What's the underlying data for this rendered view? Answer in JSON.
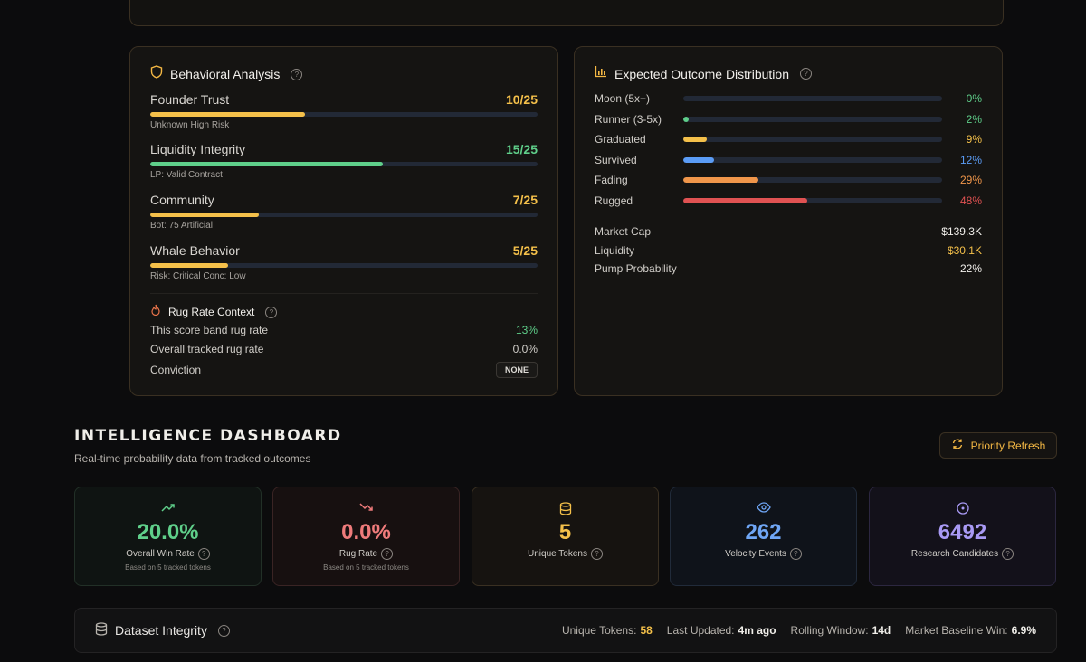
{
  "behavioral": {
    "title": "Behavioral Analysis",
    "metrics": [
      {
        "name": "Founder Trust",
        "score": "10/25",
        "fraction": 0.4,
        "sub": "Unknown High Risk",
        "color": "#f4c04a"
      },
      {
        "name": "Liquidity Integrity",
        "score": "15/25",
        "fraction": 0.6,
        "sub": "LP: Valid Contract",
        "color": "#5fcf8a"
      },
      {
        "name": "Community",
        "score": "7/25",
        "fraction": 0.28,
        "sub": "Bot: 75 Artificial",
        "color": "#f4c04a"
      },
      {
        "name": "Whale Behavior",
        "score": "5/25",
        "fraction": 0.2,
        "sub": "Risk: Critical Conc: Low",
        "color": "#f4c04a"
      }
    ],
    "rug_context": {
      "title": "Rug Rate Context",
      "band_label": "This score band rug rate",
      "band_value": "13%",
      "overall_label": "Overall tracked rug rate",
      "overall_value": "0.0%",
      "conviction_label": "Conviction",
      "conviction_value": "NONE"
    }
  },
  "distribution": {
    "title": "Expected Outcome Distribution",
    "rows": [
      {
        "label": "Moon (5x+)",
        "pct": "0%",
        "fraction": 0.0,
        "color": "#5fcf8a"
      },
      {
        "label": "Runner (3-5x)",
        "pct": "2%",
        "fraction": 0.02,
        "color": "#5fcf8a"
      },
      {
        "label": "Graduated",
        "pct": "9%",
        "fraction": 0.09,
        "color": "#f4c04a"
      },
      {
        "label": "Survived",
        "pct": "12%",
        "fraction": 0.12,
        "color": "#5b9cf5"
      },
      {
        "label": "Fading",
        "pct": "29%",
        "fraction": 0.29,
        "color": "#f0964a"
      },
      {
        "label": "Rugged",
        "pct": "48%",
        "fraction": 0.48,
        "color": "#e05252"
      }
    ],
    "market_cap_label": "Market Cap",
    "market_cap": "$139.3K",
    "liquidity_label": "Liquidity",
    "liquidity": "$30.1K",
    "pump_label": "Pump Probability",
    "pump": "22%"
  },
  "dashboard": {
    "title": "INTELLIGENCE DASHBOARD",
    "subtitle": "Real-time probability data from tracked outcomes",
    "refresh_label": "Priority Refresh",
    "cards": [
      {
        "value": "20.0%",
        "label": "Overall Win Rate",
        "note": "Based on 5 tracked tokens",
        "color": "#5fcf8a",
        "icon": "trending-up-icon"
      },
      {
        "value": "0.0%",
        "label": "Rug Rate",
        "note": "Based on 5 tracked tokens",
        "color": "#ef7b7b",
        "icon": "trending-down-icon"
      },
      {
        "value": "5",
        "label": "Unique Tokens",
        "note": "",
        "color": "#f4c04a",
        "icon": "database-icon"
      },
      {
        "value": "262",
        "label": "Velocity Events",
        "note": "",
        "color": "#6fa6f5",
        "icon": "eye-icon"
      },
      {
        "value": "6492",
        "label": "Research Candidates",
        "note": "",
        "color": "#a99af5",
        "icon": "target-icon"
      }
    ]
  },
  "integrity": {
    "title": "Dataset Integrity",
    "unique_tokens_label": "Unique Tokens:",
    "unique_tokens": "58",
    "last_updated_label": "Last Updated:",
    "last_updated": "4m ago",
    "rolling_label": "Rolling Window:",
    "rolling": "14d",
    "baseline_label": "Market Baseline Win:",
    "baseline": "6.9%"
  }
}
